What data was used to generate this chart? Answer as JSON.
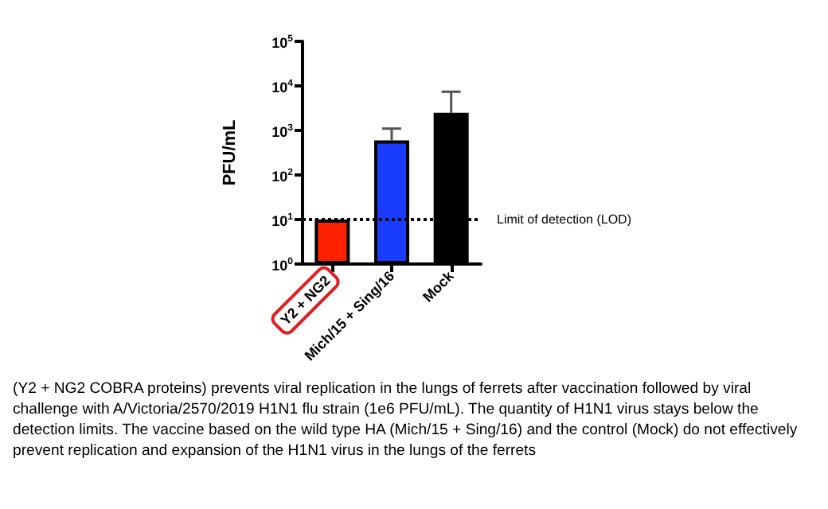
{
  "chart_data": {
    "type": "bar",
    "ylabel": "PFU/mL",
    "categories": [
      "Y2 + NG2",
      "Mich/15 + Sing/16",
      "Mock"
    ],
    "values": [
      10,
      600,
      2500
    ],
    "colors": [
      "#ff2200",
      "#1a3cff",
      "#000000"
    ],
    "errors": [
      null,
      [
        600,
        1100
      ],
      [
        2500,
        7400
      ]
    ],
    "log": true,
    "ylim": [
      1,
      100000
    ],
    "yticks": [
      {
        "value": 1,
        "label": "10$^{0}$"
      },
      {
        "value": 10,
        "label": "10$^{1}$"
      },
      {
        "value": 100,
        "label": "10$^{2}$"
      },
      {
        "value": 1000,
        "label": "10$^{3}$"
      },
      {
        "value": 10000,
        "label": "10$^{4}$"
      },
      {
        "value": 100000,
        "label": "10$^{5}$"
      }
    ],
    "grid": false,
    "ref_lines": [
      {
        "axis": "y",
        "value": 10,
        "label": "Limit of detection (LOD)",
        "color": "#000000",
        "line_style": "dotted"
      }
    ],
    "annotations": [
      "(Y2 + NG2 COBRA proteins) prevents viral replication in the lungs of ferrets after vaccination followed by viral challenge with A/Victoria/2570/2019 H1N1 flu strain (1e6 PFU/mL). The quantity of H1N1 virus stays below the detection limits. The vaccine based on the wild type HA (Mich/15 + Sing/16) and the control (Mock) do not effectively prevent replication and expansion of the H1N1 virus in the lungs of the ferrets"
    ]
  }
}
